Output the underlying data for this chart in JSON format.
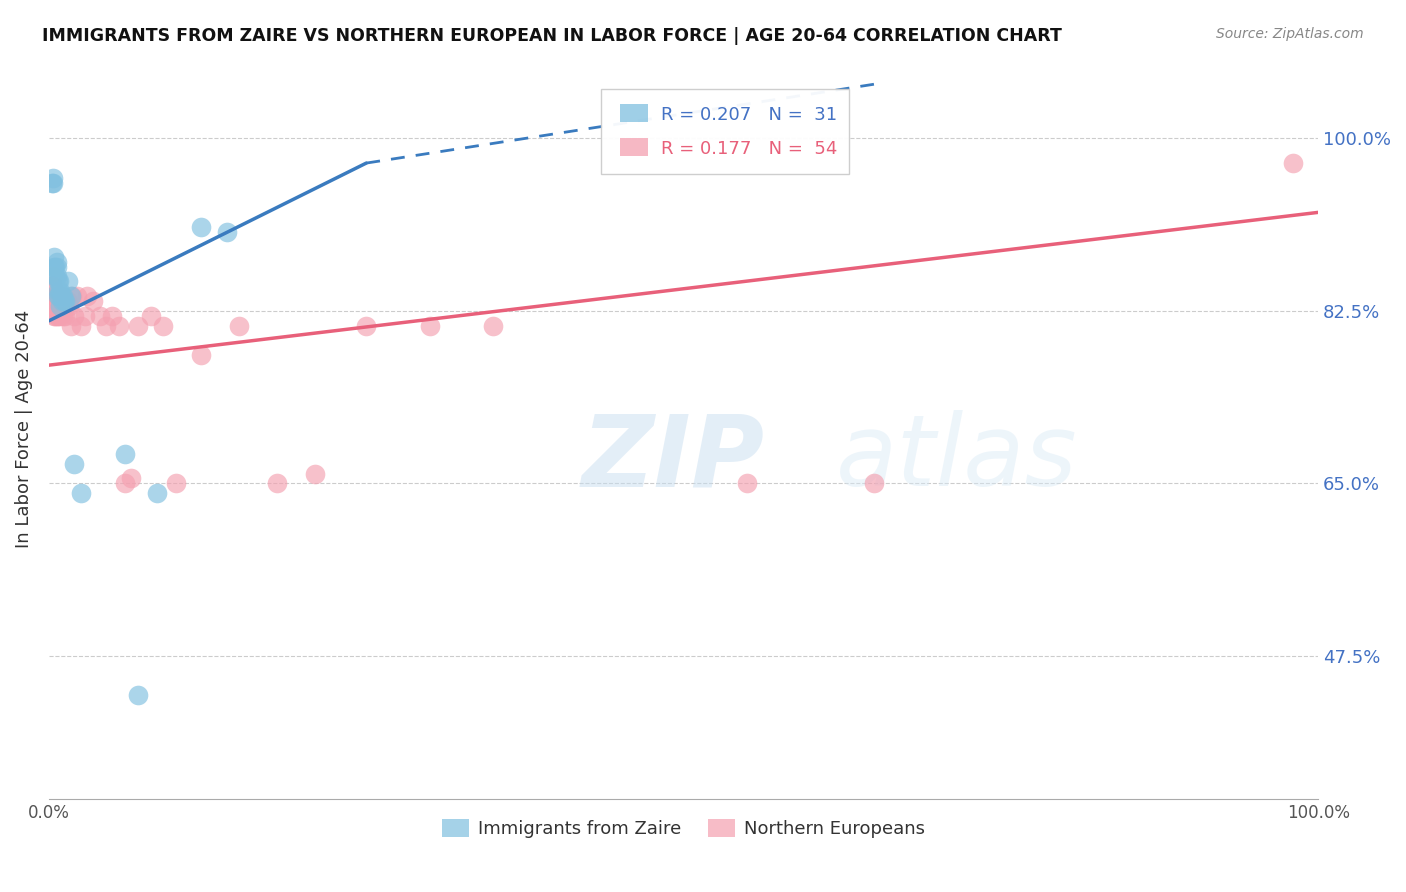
{
  "title": "IMMIGRANTS FROM ZAIRE VS NORTHERN EUROPEAN IN LABOR FORCE | AGE 20-64 CORRELATION CHART",
  "source": "Source: ZipAtlas.com",
  "ylabel": "In Labor Force | Age 20-64",
  "xlim": [
    0,
    1
  ],
  "ylim": [
    0.33,
    1.08
  ],
  "ytick_positions": [
    0.475,
    0.65,
    0.825,
    1.0
  ],
  "yticklabels": [
    "47.5%",
    "65.0%",
    "82.5%",
    "100.0%"
  ],
  "r_blue": 0.207,
  "n_blue": 31,
  "r_pink": 0.177,
  "n_pink": 54,
  "blue_color": "#7fbfdf",
  "pink_color": "#f4a0b0",
  "blue_line_color": "#3a7bbf",
  "pink_line_color": "#e8607a",
  "watermark_zip": "ZIP",
  "watermark_atlas": "atlas",
  "blue_line_x0": 0.0,
  "blue_line_y0": 0.815,
  "blue_line_x1": 0.25,
  "blue_line_y1": 0.975,
  "blue_line_dash_x1": 0.65,
  "blue_line_dash_y1": 1.055,
  "pink_line_x0": 0.0,
  "pink_line_x1": 1.0,
  "pink_line_y0": 0.77,
  "pink_line_y1": 0.925,
  "zaire_x": [
    0.002,
    0.003,
    0.003,
    0.004,
    0.004,
    0.005,
    0.005,
    0.006,
    0.006,
    0.006,
    0.007,
    0.007,
    0.007,
    0.008,
    0.008,
    0.009,
    0.009,
    0.01,
    0.01,
    0.011,
    0.012,
    0.013,
    0.015,
    0.017,
    0.02,
    0.025,
    0.06,
    0.07,
    0.085,
    0.12,
    0.14
  ],
  "zaire_y": [
    0.955,
    0.955,
    0.96,
    0.88,
    0.87,
    0.86,
    0.87,
    0.87,
    0.875,
    0.86,
    0.845,
    0.84,
    0.855,
    0.855,
    0.84,
    0.845,
    0.83,
    0.835,
    0.84,
    0.84,
    0.835,
    0.835,
    0.855,
    0.84,
    0.67,
    0.64,
    0.68,
    0.435,
    0.64,
    0.91,
    0.905
  ],
  "northern_x": [
    0.002,
    0.002,
    0.003,
    0.003,
    0.004,
    0.004,
    0.005,
    0.005,
    0.005,
    0.006,
    0.006,
    0.007,
    0.007,
    0.008,
    0.008,
    0.009,
    0.009,
    0.01,
    0.01,
    0.011,
    0.011,
    0.012,
    0.013,
    0.014,
    0.015,
    0.016,
    0.017,
    0.018,
    0.02,
    0.022,
    0.025,
    0.028,
    0.03,
    0.035,
    0.04,
    0.045,
    0.05,
    0.055,
    0.06,
    0.065,
    0.07,
    0.08,
    0.09,
    0.1,
    0.12,
    0.15,
    0.18,
    0.21,
    0.25,
    0.3,
    0.35,
    0.55,
    0.65,
    0.98
  ],
  "northern_y": [
    0.85,
    0.83,
    0.86,
    0.85,
    0.84,
    0.82,
    0.83,
    0.84,
    0.82,
    0.83,
    0.82,
    0.82,
    0.84,
    0.84,
    0.83,
    0.82,
    0.84,
    0.83,
    0.84,
    0.835,
    0.82,
    0.835,
    0.82,
    0.835,
    0.835,
    0.83,
    0.81,
    0.84,
    0.82,
    0.84,
    0.81,
    0.82,
    0.84,
    0.835,
    0.82,
    0.81,
    0.82,
    0.81,
    0.65,
    0.655,
    0.81,
    0.82,
    0.81,
    0.65,
    0.78,
    0.81,
    0.65,
    0.66,
    0.81,
    0.81,
    0.81,
    0.65,
    0.65,
    0.975
  ]
}
